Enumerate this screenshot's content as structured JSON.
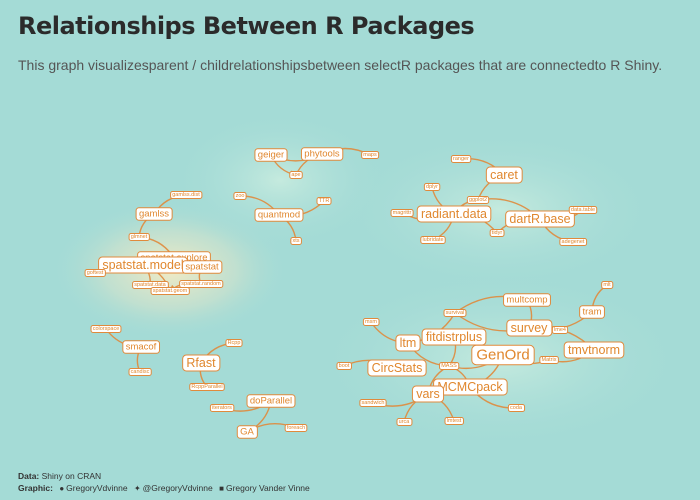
{
  "title": "Relationships Between R Packages",
  "subtitle": "This graph visualizesparent  / childrelationshipsbetween selectR packages that are connectedto R Shiny.",
  "caption": {
    "data_label": "Data:",
    "data_value": "Shiny on CRAN",
    "graphic_label": "Graphic:",
    "github": "GregoryVdvinne",
    "twitter": "@GregoryVdvinne",
    "linkedin": "Gregory Vander Vinne"
  },
  "colors": {
    "background": "#a4dbd6",
    "edge": "#e08a3c",
    "node_border": "#e08a3c",
    "node_fill": "#ffffff",
    "text": "#e0872e"
  },
  "nodes": [
    {
      "id": "geiger",
      "label": "geiger",
      "size": "m"
    },
    {
      "id": "phytools",
      "label": "phytools",
      "size": "m"
    },
    {
      "id": "maps",
      "label": "maps",
      "size": "xs"
    },
    {
      "id": "ape",
      "label": "ape",
      "size": "xs"
    },
    {
      "id": "xts",
      "label": "xts",
      "size": "xs"
    },
    {
      "id": "ttr",
      "label": "TTR",
      "size": "xs"
    },
    {
      "id": "quantmod",
      "label": "quantmod",
      "size": "m"
    },
    {
      "id": "zoo",
      "label": "zoo",
      "size": "xs"
    },
    {
      "id": "gamlss.dist",
      "label": "gamlss.dist",
      "size": "xs"
    },
    {
      "id": "gamlss",
      "label": "gamlss",
      "size": "m"
    },
    {
      "id": "glmnet",
      "label": "glmnet",
      "size": "xs"
    },
    {
      "id": "spatstat.explore",
      "label": "spatstat.explore",
      "size": "m"
    },
    {
      "id": "spatstat.model",
      "label": "spatstat.model",
      "size": "l"
    },
    {
      "id": "spatstat",
      "label": "spatstat",
      "size": "m"
    },
    {
      "id": "spatstat.data",
      "label": "spatstat.data",
      "size": "xs"
    },
    {
      "id": "spatstat.random",
      "label": "spatstat.random",
      "size": "xs"
    },
    {
      "id": "spatstat.geom",
      "label": "spatstat.geom",
      "size": "xs"
    },
    {
      "id": "goftest",
      "label": "goftest",
      "size": "xs"
    },
    {
      "id": "colorspace",
      "label": "colorspace",
      "size": "xs"
    },
    {
      "id": "smacof",
      "label": "smacof",
      "size": "m"
    },
    {
      "id": "candisc",
      "label": "candisc",
      "size": "xs"
    },
    {
      "id": "rcpp",
      "label": "Rcpp",
      "size": "xs"
    },
    {
      "id": "rfast",
      "label": "Rfast",
      "size": "l"
    },
    {
      "id": "rcppparallel",
      "label": "RcppParallel",
      "size": "xs"
    },
    {
      "id": "doparallel",
      "label": "doParallel",
      "size": "m"
    },
    {
      "id": "iterators",
      "label": "iterators",
      "size": "xs"
    },
    {
      "id": "ga",
      "label": "GA",
      "size": "m"
    },
    {
      "id": "foreach",
      "label": "foreach",
      "size": "xs"
    },
    {
      "id": "ranger",
      "label": "ranger",
      "size": "xs"
    },
    {
      "id": "caret",
      "label": "caret",
      "size": "l"
    },
    {
      "id": "dplyr",
      "label": "dplyr",
      "size": "xs"
    },
    {
      "id": "ggplot2",
      "label": "ggplot2",
      "size": "xs"
    },
    {
      "id": "magrittr",
      "label": "magrittr",
      "size": "xs"
    },
    {
      "id": "radiant.data",
      "label": "radiant.data",
      "size": "l"
    },
    {
      "id": "dartr.base",
      "label": "dartR.base",
      "size": "l"
    },
    {
      "id": "data.table",
      "label": "data.table",
      "size": "xs"
    },
    {
      "id": "lubridate",
      "label": "lubridate",
      "size": "xs"
    },
    {
      "id": "tidyr",
      "label": "tidyr",
      "size": "xs"
    },
    {
      "id": "adegenet",
      "label": "adegenet",
      "size": "xs"
    },
    {
      "id": "multcomp",
      "label": "multcomp",
      "size": "m"
    },
    {
      "id": "mlt",
      "label": "mlt",
      "size": "xs"
    },
    {
      "id": "tram",
      "label": "tram",
      "size": "m"
    },
    {
      "id": "msm",
      "label": "msm",
      "size": "xs"
    },
    {
      "id": "survival",
      "label": "survival",
      "size": "xs"
    },
    {
      "id": "survey",
      "label": "survey",
      "size": "l"
    },
    {
      "id": "ltm",
      "label": "ltm",
      "size": "l"
    },
    {
      "id": "fitdistrplus",
      "label": "fitdistrplus",
      "size": "l"
    },
    {
      "id": "lme4",
      "label": "lme4",
      "size": "xs"
    },
    {
      "id": "tmvtnorm",
      "label": "tmvtnorm",
      "size": "l"
    },
    {
      "id": "genord",
      "label": "GenOrd",
      "size": "xl"
    },
    {
      "id": "boot",
      "label": "boot",
      "size": "xs"
    },
    {
      "id": "circstats",
      "label": "CircStats",
      "size": "l"
    },
    {
      "id": "mass",
      "label": "MASS",
      "size": "xs"
    },
    {
      "id": "matrix",
      "label": "Matrix",
      "size": "xs"
    },
    {
      "id": "mcmcpack",
      "label": "MCMCpack",
      "size": "l"
    },
    {
      "id": "vars",
      "label": "vars",
      "size": "l"
    },
    {
      "id": "sandwich",
      "label": "sandwich",
      "size": "xs"
    },
    {
      "id": "coda",
      "label": "coda",
      "size": "xs"
    },
    {
      "id": "urca",
      "label": "urca",
      "size": "xs"
    },
    {
      "id": "lmtest",
      "label": "lmtest",
      "size": "xs"
    }
  ],
  "edges": [
    [
      "phytools",
      "geiger"
    ],
    [
      "maps",
      "phytools"
    ],
    [
      "ape",
      "phytools"
    ],
    [
      "geiger",
      "ape"
    ],
    [
      "ttr",
      "quantmod"
    ],
    [
      "xts",
      "quantmod"
    ],
    [
      "zoo",
      "quantmod"
    ],
    [
      "gamlss.dist",
      "gamlss"
    ],
    [
      "glmnet",
      "gamlss"
    ],
    [
      "spatstat.explore",
      "glmnet"
    ],
    [
      "spatstat.explore",
      "spatstat.model"
    ],
    [
      "spatstat.data",
      "spatstat.model"
    ],
    [
      "spatstat.random",
      "spatstat"
    ],
    [
      "spatstat.geom",
      "spatstat.model"
    ],
    [
      "spatstat.explore",
      "spatstat"
    ],
    [
      "spatstat.random",
      "spatstat.geom"
    ],
    [
      "goftest",
      "spatstat.model"
    ],
    [
      "colorspace",
      "smacof"
    ],
    [
      "candisc",
      "smacof"
    ],
    [
      "rcpp",
      "rfast"
    ],
    [
      "rcppparallel",
      "rfast"
    ],
    [
      "iterators",
      "doparallel"
    ],
    [
      "doparallel",
      "ga"
    ],
    [
      "foreach",
      "ga"
    ],
    [
      "ranger",
      "caret"
    ],
    [
      "dplyr",
      "radiant.data"
    ],
    [
      "ggplot2",
      "caret"
    ],
    [
      "ggplot2",
      "radiant.data"
    ],
    [
      "ggplot2",
      "dartr.base"
    ],
    [
      "magrittr",
      "radiant.data"
    ],
    [
      "data.table",
      "dartr.base"
    ],
    [
      "lubridate",
      "radiant.data"
    ],
    [
      "tidyr",
      "dartr.base"
    ],
    [
      "tidyr",
      "radiant.data"
    ],
    [
      "adegenet",
      "dartr.base"
    ],
    [
      "mlt",
      "tram"
    ],
    [
      "survival",
      "multcomp"
    ],
    [
      "survival",
      "survey"
    ],
    [
      "survival",
      "ltm"
    ],
    [
      "msm",
      "ltm"
    ],
    [
      "survey",
      "tmvtnorm"
    ],
    [
      "survey",
      "tram"
    ],
    [
      "multcomp",
      "survey"
    ],
    [
      "mass",
      "fitdistrplus"
    ],
    [
      "mass",
      "ltm"
    ],
    [
      "mass",
      "genord"
    ],
    [
      "mass",
      "mcmcpack"
    ],
    [
      "mass",
      "vars"
    ],
    [
      "matrix",
      "genord"
    ],
    [
      "matrix",
      "tmvtnorm"
    ],
    [
      "boot",
      "circstats"
    ],
    [
      "lme4",
      "survey"
    ],
    [
      "coda",
      "mcmcpack"
    ],
    [
      "sandwich",
      "vars"
    ],
    [
      "urca",
      "vars"
    ],
    [
      "lmtest",
      "vars"
    ],
    [
      "genord",
      "mcmcpack"
    ]
  ]
}
